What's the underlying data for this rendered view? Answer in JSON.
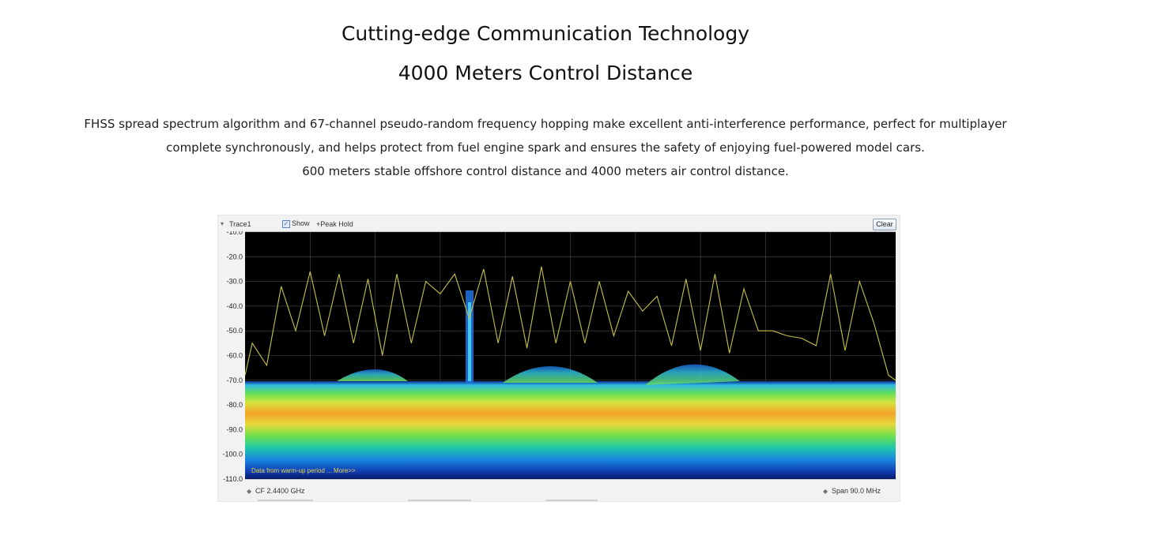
{
  "headline": {
    "line1": "Cutting-edge Communication Technology",
    "line2": "4000 Meters Control Distance"
  },
  "description": {
    "line1": "FHSS spread spectrum algorithm and 67-channel pseudo-random frequency hopping make excellent anti-interference performance, perfect for multiplayer",
    "line2": "complete synchronously, and helps protect from fuel engine spark and ensures the safety of enjoying fuel-powered model cars.",
    "line3": "600 meters stable offshore control distance and 4000 meters air control distance."
  },
  "analyzer": {
    "trace_label": "Trace1",
    "show_label": "Show",
    "show_checked": true,
    "peak_hold_label": "+Peak Hold",
    "clear_label": "Clear",
    "warmup_text": "Data from warm-up period ... More>>",
    "cf_label": "CF  2.4400 GHz",
    "span_label": "Span  90.0 MHz",
    "y_ticks": [
      "-10.0",
      "-20.0",
      "-30.0",
      "-40.0",
      "-50.0",
      "-60.0",
      "-70.0",
      "-80.0",
      "-90.0",
      "-100.0",
      "-110.0"
    ],
    "colors": {
      "plot_bg": "#000000",
      "grid": "#4a4a4a",
      "peak_trace": "#c8c04a",
      "warmup_text": "#e8d84a"
    }
  },
  "chart_data": {
    "type": "line",
    "ylim": [
      -110,
      -10
    ],
    "xlim": [
      2395,
      2485
    ],
    "grid": true,
    "series": [
      {
        "x": [
          2395,
          2396,
          2398,
          2400,
          2402,
          2404,
          2406,
          2408,
          2410,
          2412,
          2414,
          2416,
          2418,
          2420,
          2422,
          2424,
          2426,
          2428,
          2430,
          2432,
          2434,
          2436,
          2438,
          2440,
          2442,
          2444,
          2446,
          2448,
          2450,
          2452,
          2454,
          2456,
          2458,
          2460,
          2462,
          2464,
          2466,
          2468,
          2470,
          2472,
          2474,
          2476,
          2478,
          2480,
          2482,
          2484,
          2485
        ],
        "values": [
          -68,
          -55,
          -64,
          -32,
          -50,
          -26,
          -52,
          -27,
          -55,
          -29,
          -60,
          -27,
          -55,
          -30,
          -35,
          -27,
          -45,
          -25,
          -55,
          -28,
          -57,
          -24,
          -55,
          -30,
          -55,
          -30,
          -52,
          -34,
          -42,
          -36,
          -56,
          -29,
          -58,
          -27,
          -59,
          -33,
          -50,
          -50,
          -52,
          -53,
          -56,
          -27,
          -58,
          -30,
          -47,
          -68,
          -70
        ]
      }
    ]
  }
}
